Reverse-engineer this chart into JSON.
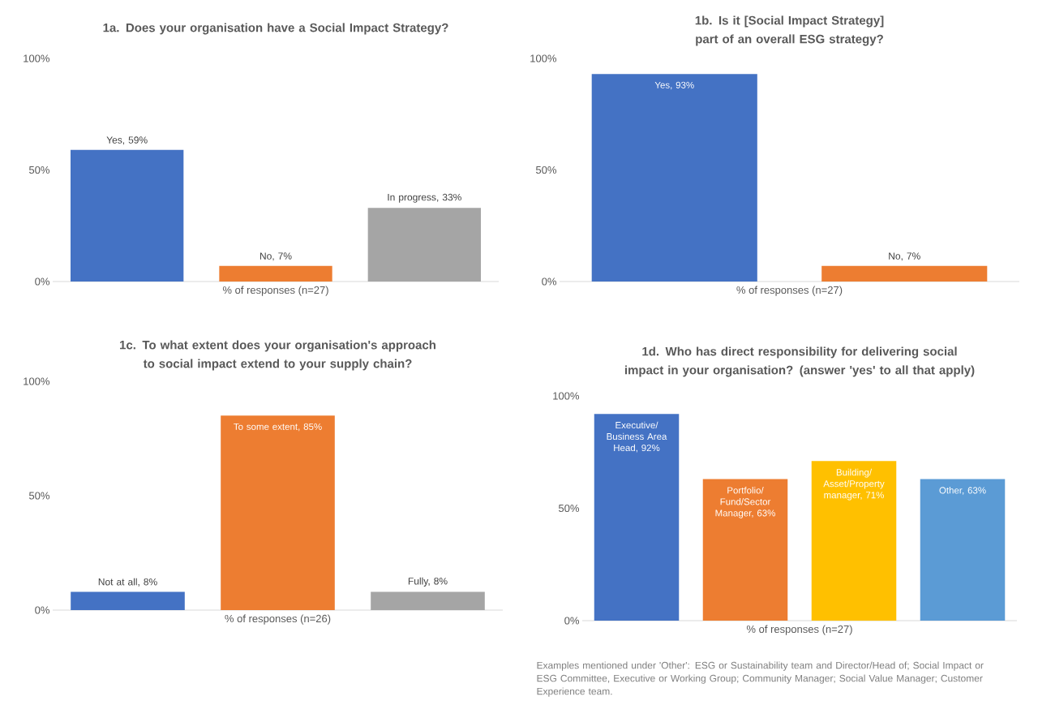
{
  "chart_data": [
    {
      "type": "bar",
      "title": "1a. Does your organisation have a Social Impact Strategy?",
      "xlabel": "% of responses (n=27)",
      "categories": [
        null,
        null,
        null
      ],
      "values": [
        59,
        7,
        33
      ],
      "colors": [
        "#4472c4",
        "#ed7d31",
        "#a5a5a5"
      ],
      "value_labels": [
        "Yes, 59%",
        "No, 7%",
        "In progress, 33%"
      ],
      "ylim": [
        0,
        100
      ],
      "yticks": [
        {
          "value": 0,
          "label": "0%"
        },
        {
          "value": 50,
          "label": "50%"
        },
        {
          "value": 100,
          "label": "100%"
        }
      ]
    },
    {
      "type": "bar",
      "title": "1b. Is it [Social Impact Strategy] part of an overall ESG strategy?",
      "xlabel": "% of responses (n=27)",
      "categories": [
        null,
        null
      ],
      "values": [
        93,
        7
      ],
      "colors": [
        "#4472c4",
        "#ed7d31"
      ],
      "value_labels": [
        "Yes, 93%",
        "No, 7%"
      ],
      "ylim": [
        0,
        100
      ],
      "yticks": [
        {
          "value": 0,
          "label": "0%"
        },
        {
          "value": 50,
          "label": "50%"
        },
        {
          "value": 100,
          "label": "100%"
        }
      ]
    },
    {
      "type": "bar",
      "title": "1c. To what extent does your organisation's approach to social impact extend to your supply chain?",
      "xlabel": "% of responses (n=26)",
      "categories": [
        null,
        null,
        null
      ],
      "values": [
        8,
        85,
        8
      ],
      "colors": [
        "#4472c4",
        "#ed7d31",
        "#a5a5a5"
      ],
      "value_labels": [
        "Not at all, 8%",
        "To some extent, 85%",
        "Fully, 8%"
      ],
      "ylim": [
        0,
        100
      ],
      "yticks": [
        {
          "value": 0,
          "label": "0%"
        },
        {
          "value": 50,
          "label": "50%"
        },
        {
          "value": 100,
          "label": "100%"
        }
      ]
    },
    {
      "type": "bar",
      "title": "1d. Who has direct responsibility for delivering social impact in your organisation? (answer 'yes' to all that apply)",
      "xlabel": "% of responses (n=27)",
      "categories": [
        null,
        null,
        null,
        null
      ],
      "values": [
        92,
        63,
        71,
        63
      ],
      "colors": [
        "#4472c4",
        "#ed7d31",
        "#ffc000",
        "#5b9bd5"
      ],
      "value_labels": [
        "Executive/Business Area Head, 92%",
        "Portfolio/Fund/Sector Manager, 63%",
        "Building/Asset/Property manager, 71%",
        "Other, 63%"
      ],
      "ylim": [
        0,
        100
      ],
      "yticks": [
        {
          "value": 0,
          "label": "0%"
        },
        {
          "value": 50,
          "label": "50%"
        },
        {
          "value": 100,
          "label": "100%"
        }
      ],
      "annotations": [
        "Examples mentioned under 'Other': ESG or Sustainability team and Director/Head of; Social Impact or ESG Committee, Executive or Working Group; Community Manager; Social Value Manager; Customer Experience team."
      ]
    }
  ]
}
